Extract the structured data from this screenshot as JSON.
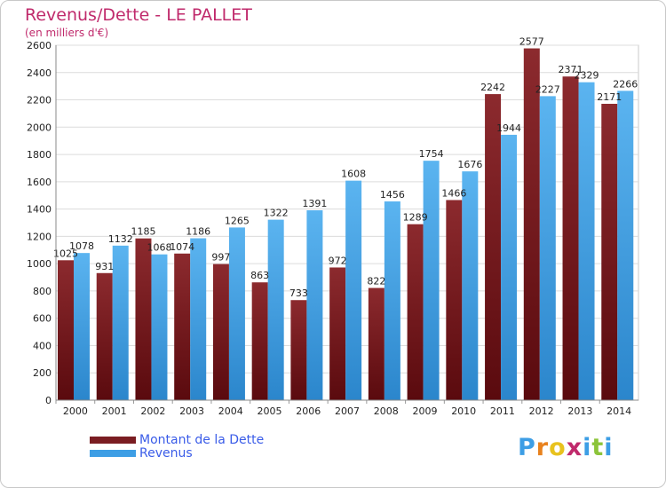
{
  "header": {
    "title": "Revenus/Dette - LE PALLET",
    "subtitle": "(en milliers d'€)"
  },
  "chart_data": {
    "type": "bar",
    "categories": [
      "2000",
      "2001",
      "2002",
      "2003",
      "2004",
      "2005",
      "2006",
      "2007",
      "2008",
      "2009",
      "2010",
      "2011",
      "2012",
      "2013",
      "2014"
    ],
    "series": [
      {
        "name": "Montant de la Dette",
        "color": "#7a1d22",
        "labels": [
          "1025",
          "931",
          "1185",
          "1074",
          "997",
          "863",
          "733",
          "972",
          "822",
          "1289",
          "1466",
          "2242",
          "2577",
          "2371",
          "2171"
        ],
        "values": [
          1025,
          931,
          1185,
          1074,
          997,
          863,
          733,
          972,
          822,
          1289,
          1466,
          2242,
          2577,
          2371,
          2171
        ]
      },
      {
        "name": "Revenus",
        "color": "#3d9ee5",
        "labels": [
          "1078",
          "1132",
          "1068",
          "1186",
          "1265",
          "1322",
          "1391",
          "1608",
          "1456",
          "1754",
          "1676",
          "1944",
          "2227",
          "2329",
          "2266"
        ],
        "values": [
          1078,
          1132,
          1068,
          1186,
          1265,
          1322,
          1391,
          1608,
          1456,
          1754,
          1676,
          1944,
          2227,
          2329,
          2266
        ]
      }
    ],
    "yticks": [
      "0",
      "200",
      "400",
      "600",
      "800",
      "1000",
      "1200",
      "1400",
      "1600",
      "1800",
      "2000",
      "2200",
      "2400",
      "2600"
    ],
    "ylim": [
      0,
      2600
    ],
    "grid": true,
    "legend_position": "bottom-left"
  },
  "legend": {
    "debt_label": "Montant de la Dette",
    "revenue_label": "Revenus",
    "debt_color": "#7a1d22",
    "revenue_color": "#3d9ee5"
  },
  "brand": {
    "letters": [
      "P",
      "r",
      "o",
      "x",
      "i",
      "t",
      "i"
    ],
    "colors": [
      "#3d9ee5",
      "#e8821e",
      "#e8c21e",
      "#c02a6c",
      "#3d9ee5",
      "#8cc43a",
      "#3d9ee5"
    ]
  }
}
